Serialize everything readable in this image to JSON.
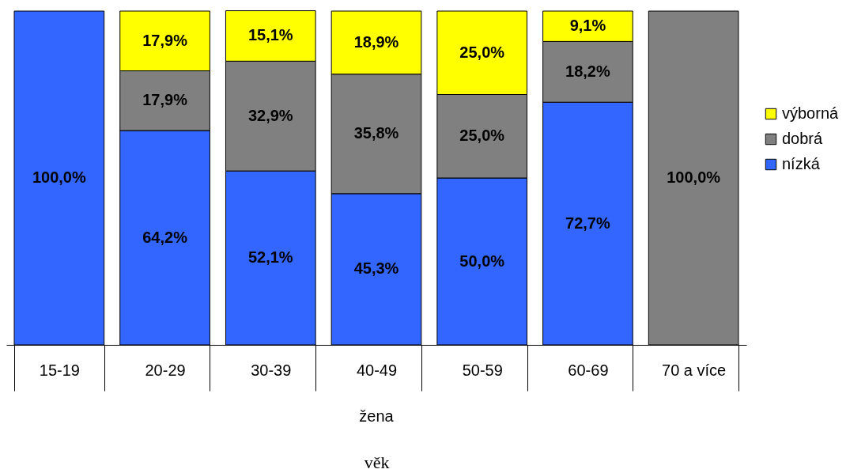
{
  "chart_data": {
    "type": "bar",
    "stacked": true,
    "xlabel": "věk",
    "annotations": [
      "žena"
    ],
    "categories": [
      "15-19",
      "20-29",
      "30-39",
      "40-49",
      "50-59",
      "60-69",
      "70 a více"
    ],
    "ylim": [
      0,
      100
    ],
    "tick_labels": "x",
    "legend": "right",
    "grid": false,
    "series": [
      {
        "name": "nízká",
        "color": "#3366ff",
        "values": [
          100.0,
          64.2,
          52.1,
          45.3,
          50.0,
          72.7,
          null
        ],
        "value_labels": [
          "100,0%",
          "64,2%",
          "52,1%",
          "45,3%",
          "50,0%",
          "72,7%",
          null
        ]
      },
      {
        "name": "dobrá",
        "color": "#808080",
        "values": [
          null,
          17.9,
          32.9,
          35.8,
          25.0,
          18.2,
          100.0
        ],
        "value_labels": [
          null,
          "17,9%",
          "32,9%",
          "35,8%",
          "25,0%",
          "18,2%",
          "100,0%"
        ]
      },
      {
        "name": "výborná",
        "color": "#ffff00",
        "values": [
          null,
          17.9,
          15.1,
          18.9,
          25.0,
          9.1,
          null
        ],
        "value_labels": [
          null,
          "17,9%",
          "15,1%",
          "18,9%",
          "25,0%",
          "9,1%",
          null
        ]
      }
    ]
  }
}
